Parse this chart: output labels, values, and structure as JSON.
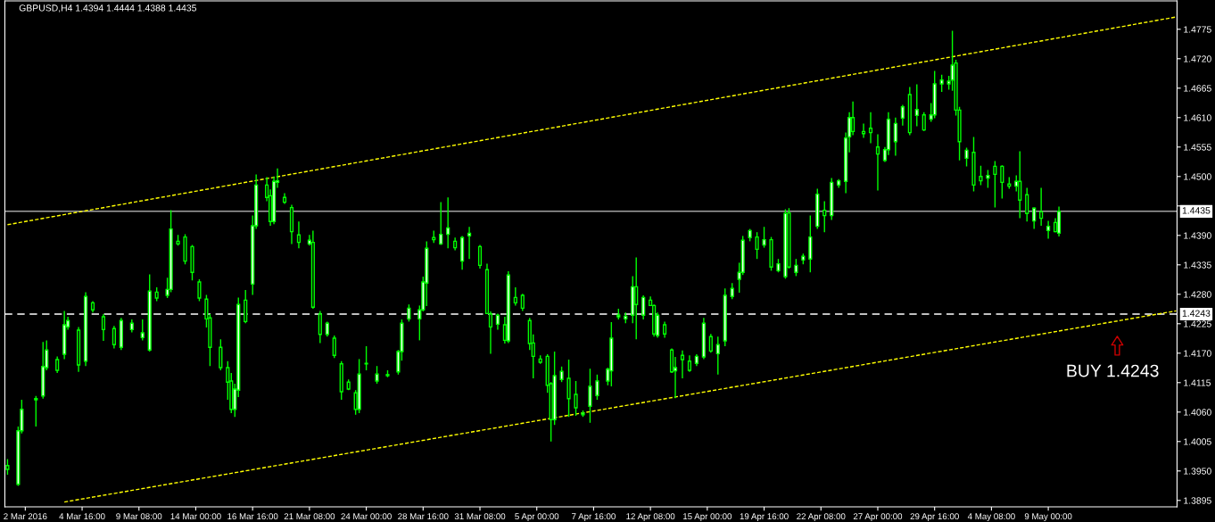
{
  "chart_data": {
    "type": "candlestick",
    "title": "GBPUSD,H4 1.4394 1.4444 1.4388 1.4435",
    "color": "#00ff00",
    "categories": [
      null,
      null,
      null,
      null,
      null,
      "2 Mar 2016",
      null,
      null,
      null,
      null,
      null,
      null,
      null,
      null,
      null,
      null,
      null,
      null,
      null,
      null,
      null,
      "4 Mar 16:00",
      null,
      null,
      null,
      null,
      null,
      null,
      null,
      null,
      null,
      null,
      null,
      null,
      null,
      null,
      null,
      "9 Mar 08:00",
      null,
      null,
      null,
      null,
      null,
      null,
      null,
      null,
      null,
      null,
      null,
      null,
      null,
      null,
      null,
      "14 Mar 00:00",
      null,
      null,
      null,
      null,
      null,
      null,
      null,
      null,
      null,
      null,
      null,
      null,
      null,
      null,
      null,
      "16 Mar 16:00",
      null,
      null,
      null,
      null,
      null,
      null,
      null,
      null,
      null,
      null,
      null,
      null,
      null,
      null,
      null,
      "21 Mar 08:00",
      null,
      null,
      null,
      null,
      null,
      null,
      null,
      null,
      null,
      null,
      null,
      null,
      null,
      null,
      null,
      "24 Mar 00:00",
      null,
      null,
      null,
      null,
      null,
      null,
      null,
      null,
      null,
      null,
      null,
      null,
      null,
      null,
      null,
      "28 Mar 16:00",
      null,
      null,
      null,
      null,
      null,
      null,
      null,
      null,
      null,
      null,
      null,
      null,
      null,
      null,
      null,
      "31 Mar 08:00",
      null,
      null,
      null,
      null,
      null,
      null,
      null,
      null,
      null,
      null,
      null,
      null,
      null,
      null,
      null,
      "5 Apr 00:00",
      null,
      null,
      null,
      null,
      null,
      null,
      null,
      null,
      null,
      null,
      null,
      null,
      null,
      null,
      null,
      "7 Apr 16:00",
      null,
      null,
      null,
      null,
      null,
      null,
      null,
      null,
      null,
      null,
      null,
      null,
      null,
      null,
      null,
      "12 Apr 08:00",
      null,
      null,
      null,
      null,
      null,
      null,
      null,
      null,
      null,
      null,
      null,
      null,
      null,
      null,
      null,
      "15 Apr 00:00",
      null,
      null,
      null,
      null,
      null,
      null,
      null,
      null,
      null,
      null,
      null,
      null,
      null,
      null,
      null,
      "19 Apr 16:00",
      null,
      null,
      null,
      null,
      null,
      null,
      null,
      null,
      null,
      null,
      null,
      null,
      null,
      null,
      null,
      "22 Apr 08:00",
      null,
      null,
      null,
      null,
      null,
      null,
      null,
      null,
      null,
      null,
      null,
      null,
      null,
      null,
      null,
      "27 Apr 00:00",
      null,
      null,
      null,
      null,
      null,
      null,
      null,
      null,
      null,
      null,
      null,
      null,
      null,
      null,
      null,
      "29 Apr 16:00",
      null,
      null,
      null,
      null,
      null,
      null,
      null,
      null,
      null,
      null,
      null,
      null,
      null,
      null,
      null,
      "4 May 08:00",
      null,
      null,
      null,
      null,
      null,
      null,
      null,
      null,
      null,
      null,
      null,
      null,
      null,
      null,
      null,
      "9 May 00:00",
      null,
      null,
      null,
      null,
      null,
      null,
      null,
      null,
      null,
      null,
      null,
      null,
      null,
      null,
      null,
      null,
      null,
      null,
      null,
      null,
      null,
      null,
      null,
      null,
      null,
      null,
      null,
      null,
      null,
      null,
      null,
      null,
      null,
      null,
      null,
      null
    ],
    "ohlc": [
      [
        1.396,
        1.3972,
        1.3943,
        1.3953
      ],
      null,
      null,
      [
        1.3925,
        1.4033,
        1.3922,
        1.4025
      ],
      [
        1.4025,
        1.4083,
        1.402,
        1.4065
      ],
      null,
      null,
      null,
      [
        1.4083,
        1.409,
        1.4033,
        1.4085
      ],
      null,
      [
        1.409,
        1.4191,
        1.4085,
        1.4145
      ],
      [
        1.4143,
        1.4194,
        1.4138,
        1.4176
      ],
      null,
      null,
      [
        1.4158,
        1.4164,
        1.4133,
        1.4138
      ],
      null,
      [
        1.4168,
        1.4249,
        1.4159,
        1.4223
      ],
      [
        1.4219,
        1.4238,
        1.4214,
        1.4231
      ],
      null,
      null,
      [
        1.4213,
        1.4219,
        1.4135,
        1.4148
      ],
      null,
      [
        1.4155,
        1.4284,
        1.4146,
        1.4276
      ],
      null,
      [
        1.4264,
        1.4267,
        1.4246,
        1.4251
      ],
      null,
      null,
      [
        1.4238,
        1.4243,
        1.4193,
        1.4214
      ],
      null,
      null,
      [
        1.4216,
        1.4221,
        1.4179,
        1.4186
      ],
      null,
      [
        1.4181,
        1.4236,
        1.4176,
        1.4231
      ],
      null,
      null,
      [
        1.4214,
        1.4233,
        1.4209,
        1.4226
      ],
      null,
      null,
      [
        1.4199,
        1.4233,
        1.4194,
        1.4208
      ],
      null,
      [
        1.4176,
        1.4317,
        1.4173,
        1.4286
      ],
      null,
      [
        1.4284,
        1.4293,
        1.4267,
        1.4273
      ],
      null,
      null,
      [
        1.4278,
        1.4311,
        1.4273,
        1.4289
      ],
      [
        1.4289,
        1.4437,
        1.4284,
        1.4402
      ],
      null,
      [
        1.4379,
        1.4391,
        1.4371,
        1.4374
      ],
      null,
      [
        1.4387,
        1.4392,
        1.4336,
        1.4342
      ],
      null,
      [
        1.4369,
        1.4372,
        1.4306,
        1.4321
      ],
      null,
      [
        1.4303,
        1.4308,
        1.4267,
        1.4273
      ],
      null,
      [
        1.4271,
        1.4279,
        1.4218,
        1.4234
      ],
      [
        1.4236,
        1.4243,
        1.4146,
        1.4181
      ],
      null,
      null,
      [
        1.4181,
        1.4196,
        1.4138,
        1.4143
      ],
      null,
      [
        1.4143,
        1.4155,
        1.4083,
        1.4116
      ],
      [
        1.4118,
        1.4133,
        1.4058,
        1.4065
      ],
      [
        1.4065,
        1.4113,
        1.4051,
        1.4103
      ],
      [
        1.4101,
        1.4274,
        1.4088,
        1.4261
      ],
      null,
      [
        1.4269,
        1.4288,
        1.4226,
        1.4229
      ],
      null,
      [
        1.4299,
        1.4427,
        1.4279,
        1.4408
      ],
      [
        1.4408,
        1.4504,
        1.4402,
        1.4484
      ],
      null,
      null,
      [
        1.4484,
        1.4499,
        1.4454,
        1.4461
      ],
      [
        1.4464,
        1.4476,
        1.4408,
        1.4416
      ],
      [
        1.4416,
        1.45,
        1.4411,
        1.4491
      ],
      [
        1.4489,
        1.4515,
        1.4479,
        1.4492
      ],
      null,
      [
        1.4461,
        1.4469,
        1.4449,
        1.4452
      ],
      null,
      [
        1.4442,
        1.4447,
        1.4374,
        1.4397
      ],
      null,
      [
        1.4391,
        1.4416,
        1.4366,
        1.4377
      ],
      null,
      null,
      [
        1.4374,
        1.4391,
        1.4371,
        1.4381
      ],
      [
        1.4377,
        1.4399,
        1.4253,
        1.4256
      ],
      null,
      [
        1.4243,
        1.4249,
        1.4189,
        1.4205
      ],
      null,
      [
        1.4205,
        1.4229,
        1.4201,
        1.4226
      ],
      null,
      [
        1.4198,
        1.4203,
        1.4161,
        1.4166
      ],
      null,
      [
        1.415,
        1.4155,
        1.4083,
        1.4098
      ],
      null,
      [
        1.4116,
        1.4121,
        1.4101,
        1.4103
      ],
      null,
      [
        1.4096,
        1.4101,
        1.4055,
        1.4065
      ],
      [
        1.4065,
        1.4159,
        1.4058,
        1.4131
      ],
      null,
      [
        1.4151,
        1.4183,
        1.4138,
        1.415
      ],
      null,
      null,
      [
        1.4118,
        1.4146,
        1.4113,
        1.4131
      ],
      null,
      null,
      [
        1.413,
        1.4138,
        1.4125,
        1.4128
      ],
      null,
      null,
      [
        1.4135,
        1.4176,
        1.413,
        1.4173
      ],
      [
        1.4173,
        1.4233,
        1.4156,
        1.4226
      ],
      null,
      [
        1.4234,
        1.4261,
        1.4229,
        1.4254
      ],
      null,
      null,
      [
        1.4234,
        1.4259,
        1.4194,
        1.4251
      ],
      [
        1.4251,
        1.4313,
        1.4248,
        1.4303
      ],
      [
        1.4301,
        1.4379,
        1.4258,
        1.4366
      ],
      null,
      [
        1.4386,
        1.4399,
        1.4376,
        1.4382
      ],
      null,
      [
        1.4374,
        1.4452,
        1.4372,
        1.4392
      ],
      null,
      [
        1.4392,
        1.4461,
        1.4366,
        1.4404
      ],
      null,
      [
        1.4379,
        1.4386,
        1.4362,
        1.4367
      ],
      null,
      [
        1.4342,
        1.4389,
        1.4326,
        1.4386
      ],
      null,
      [
        1.4389,
        1.4406,
        1.4346,
        1.4394
      ],
      null,
      null,
      [
        1.4369,
        1.4372,
        1.4328,
        1.4334
      ],
      null,
      [
        1.4326,
        1.4337,
        1.4243,
        1.4244
      ],
      [
        1.4243,
        1.4248,
        1.4169,
        1.4219
      ],
      null,
      [
        1.4224,
        1.4244,
        1.4214,
        1.4241
      ],
      null,
      [
        1.4223,
        1.4238,
        1.4188,
        1.4194
      ],
      [
        1.4193,
        1.4323,
        1.4189,
        1.4316
      ],
      null,
      [
        1.4274,
        1.4293,
        1.4259,
        1.4264
      ],
      null,
      [
        1.4278,
        1.4281,
        1.4249,
        1.4254
      ],
      null,
      [
        1.4231,
        1.4236,
        1.4176,
        1.4188
      ],
      [
        1.4189,
        1.4205,
        1.4123,
        1.4164
      ],
      null,
      [
        1.4159,
        1.4166,
        1.415,
        1.4153
      ],
      null,
      [
        1.4164,
        1.4168,
        1.4096,
        1.411
      ],
      [
        1.4113,
        1.4116,
        1.4005,
        1.4046
      ],
      [
        1.4046,
        1.4173,
        1.4036,
        1.4128
      ],
      null,
      [
        1.4121,
        1.4145,
        1.4116,
        1.4136
      ],
      null,
      [
        1.4123,
        1.4158,
        1.4051,
        1.4085
      ],
      null,
      [
        1.4093,
        1.4118,
        1.4053,
        1.4068
      ],
      null,
      [
        1.4055,
        1.4063,
        1.4051,
        1.4058
      ],
      null,
      [
        1.4071,
        1.4141,
        1.404,
        1.4108
      ],
      null,
      [
        1.4091,
        1.413,
        1.4083,
        1.4118
      ],
      null,
      null,
      [
        1.4118,
        1.4143,
        1.411,
        1.414
      ],
      [
        1.4137,
        1.4228,
        1.4108,
        1.4198
      ],
      null,
      [
        1.4238,
        1.4253,
        1.4233,
        1.4241
      ],
      null,
      [
        1.4234,
        1.4246,
        1.4226,
        1.4239
      ],
      null,
      [
        1.4241,
        1.4314,
        1.4226,
        1.4294
      ],
      [
        1.4294,
        1.4349,
        1.4196,
        1.4261
      ],
      null,
      [
        1.4241,
        1.4278,
        1.4233,
        1.4274
      ],
      null,
      [
        1.4269,
        1.4276,
        1.4258,
        1.4259
      ],
      [
        1.4259,
        1.4261,
        1.4201,
        1.4206
      ],
      [
        1.4203,
        1.4246,
        1.4199,
        1.4241
      ],
      null,
      [
        1.4223,
        1.4229,
        1.4199,
        1.4206
      ],
      null,
      [
        1.4176,
        1.4179,
        1.4133,
        1.4135
      ],
      [
        1.4137,
        1.4163,
        1.4086,
        1.4143
      ],
      null,
      [
        1.4166,
        1.4175,
        1.4123,
        1.4158
      ],
      null,
      [
        1.4155,
        1.4166,
        1.4135,
        1.4138
      ],
      null,
      [
        1.4151,
        1.4168,
        1.4146,
        1.4164
      ],
      null,
      [
        1.4163,
        1.4236,
        1.4159,
        1.4226
      ],
      null,
      [
        1.4201,
        1.4206,
        1.4171,
        1.4174
      ],
      null,
      [
        1.4169,
        1.4201,
        1.413,
        1.4186
      ],
      null,
      [
        1.4193,
        1.4291,
        1.4183,
        1.4278
      ],
      null,
      [
        1.4276,
        1.4301,
        1.4271,
        1.4291
      ],
      null,
      [
        1.4308,
        1.4339,
        1.4283,
        1.4321
      ],
      [
        1.4321,
        1.4389,
        1.4316,
        1.4381
      ],
      null,
      [
        1.4386,
        1.4402,
        1.4379,
        1.4399
      ],
      null,
      [
        1.4387,
        1.4396,
        1.4346,
        1.4364
      ],
      null,
      [
        1.4372,
        1.4406,
        1.4367,
        1.4382
      ],
      null,
      [
        1.4382,
        1.4387,
        1.4324,
        1.4331
      ],
      null,
      [
        1.4324,
        1.4346,
        1.4321,
        1.4337
      ],
      null,
      [
        1.4313,
        1.4439,
        1.4309,
        1.4431
      ],
      [
        1.4432,
        1.4441,
        1.4328,
        1.4331
      ],
      null,
      [
        1.4321,
        1.4346,
        1.4314,
        1.4334
      ],
      null,
      [
        1.4344,
        1.4356,
        1.4336,
        1.4351
      ],
      null,
      [
        1.4346,
        1.4427,
        1.4321,
        1.4387
      ],
      null,
      [
        1.4407,
        1.4477,
        1.4402,
        1.4467
      ],
      null,
      [
        1.4437,
        1.4454,
        1.4396,
        1.4427
      ],
      null,
      [
        1.4427,
        1.4497,
        1.4419,
        1.4489
      ],
      null,
      [
        1.4484,
        1.4495,
        1.4479,
        1.4492
      ],
      null,
      [
        1.4491,
        1.4582,
        1.4469,
        1.4572
      ],
      [
        1.4574,
        1.462,
        1.4545,
        1.461
      ],
      [
        1.461,
        1.464,
        1.4577,
        1.4584
      ],
      null,
      null,
      [
        1.4584,
        1.4599,
        1.4572,
        1.458
      ],
      null,
      [
        1.459,
        1.462,
        1.4562,
        1.4582
      ],
      null,
      [
        1.4555,
        1.4579,
        1.4474,
        1.4542
      ],
      null,
      [
        1.453,
        1.4555,
        1.4527,
        1.455
      ],
      [
        1.455,
        1.462,
        1.454,
        1.4607
      ],
      null,
      [
        1.4565,
        1.461,
        1.4539,
        1.4599
      ],
      null,
      [
        1.4609,
        1.4634,
        1.4595,
        1.463
      ],
      null,
      [
        1.4653,
        1.4667,
        1.4577,
        1.4582
      ],
      null,
      [
        1.4614,
        1.4672,
        1.4594,
        1.4625
      ],
      null,
      [
        1.4615,
        1.462,
        1.4585,
        1.4587
      ],
      null,
      [
        1.4607,
        1.4637,
        1.4602,
        1.4615
      ],
      [
        1.4615,
        1.4697,
        1.4609,
        1.4673
      ],
      null,
      [
        1.4673,
        1.469,
        1.4658,
        1.468
      ],
      null,
      [
        1.4673,
        1.4688,
        1.4662,
        1.4678
      ],
      [
        1.468,
        1.4772,
        1.466,
        1.4708
      ],
      [
        1.4712,
        1.4718,
        1.4614,
        1.4624
      ],
      [
        1.4624,
        1.463,
        1.453,
        1.4565
      ],
      null,
      [
        1.4534,
        1.4554,
        1.4519,
        1.4549
      ],
      null,
      [
        1.4545,
        1.4574,
        1.4472,
        1.4484
      ],
      null,
      [
        1.45,
        1.452,
        1.4484,
        1.4492
      ],
      null,
      [
        1.4497,
        1.4512,
        1.4479,
        1.4502
      ],
      null,
      [
        1.4519,
        1.4529,
        1.4442,
        1.4504
      ],
      null,
      [
        1.4519,
        1.4521,
        1.4459,
        1.4489
      ],
      null,
      [
        1.4486,
        1.4499,
        1.4477,
        1.4482
      ],
      null,
      [
        1.4482,
        1.4502,
        1.4472,
        1.4491
      ],
      [
        1.4491,
        1.4547,
        1.4422,
        1.4456
      ],
      null,
      [
        1.4466,
        1.4479,
        1.4416,
        1.4431
      ],
      null,
      [
        1.4417,
        1.4442,
        1.4402,
        1.4441
      ],
      null,
      [
        1.4434,
        1.4479,
        1.4408,
        1.4422
      ],
      null,
      [
        1.4399,
        1.4417,
        1.4384,
        1.4407
      ],
      null,
      [
        1.4414,
        1.4422,
        1.4396,
        1.4397
      ],
      [
        1.4394,
        1.4444,
        1.4388,
        1.4435
      ],
      null,
      null,
      null,
      null,
      null,
      null,
      null,
      null,
      null,
      null,
      null,
      null,
      null,
      null,
      null,
      null,
      null,
      null,
      null,
      null,
      null,
      null,
      null,
      null,
      null,
      null,
      null,
      null,
      null,
      null,
      null,
      null,
      null
    ],
    "series": [
      {
        "type": "line",
        "color": "#ffff00",
        "line_style": "dashed",
        "values": [
          1.441,
          null,
          null,
          null,
          null,
          null,
          null,
          null,
          null,
          null,
          null,
          null,
          null,
          null,
          null,
          null,
          null,
          null,
          null,
          null,
          null,
          null,
          null,
          null,
          null,
          null,
          null,
          null,
          null,
          null,
          null,
          null,
          null,
          null,
          null,
          null,
          null,
          null,
          null,
          null,
          null,
          null,
          null,
          null,
          null,
          null,
          null,
          null,
          null,
          null,
          null,
          null,
          null,
          null,
          null,
          null,
          null,
          null,
          null,
          null,
          null,
          null,
          null,
          null,
          null,
          null,
          null,
          null,
          null,
          null,
          null,
          null,
          null,
          null,
          null,
          null,
          null,
          null,
          null,
          null,
          null,
          null,
          null,
          null,
          null,
          null,
          null,
          null,
          null,
          null,
          null,
          null,
          null,
          null,
          null,
          null,
          null,
          null,
          null,
          null,
          null,
          null,
          null,
          null,
          null,
          null,
          null,
          null,
          null,
          null,
          null,
          null,
          null,
          null,
          null,
          null,
          null,
          null,
          null,
          null,
          null,
          null,
          null,
          null,
          null,
          null,
          null,
          null,
          null,
          null,
          null,
          null,
          null,
          null,
          null,
          null,
          null,
          null,
          null,
          null,
          null,
          null,
          null,
          null,
          null,
          null,
          null,
          null,
          null,
          null,
          null,
          null,
          null,
          null,
          null,
          null,
          null,
          null,
          null,
          null,
          null,
          null,
          null,
          null,
          null,
          null,
          null,
          null,
          null,
          null,
          null,
          null,
          null,
          null,
          null,
          null,
          null,
          null,
          null,
          null,
          null,
          null,
          null,
          null,
          null,
          null,
          null,
          null,
          null,
          null,
          null,
          null,
          null,
          null,
          null,
          null,
          null,
          null,
          null,
          null,
          null,
          null,
          null,
          null,
          null,
          null,
          null,
          null,
          null,
          null,
          null,
          null,
          null,
          null,
          null,
          null,
          null,
          null,
          null,
          null,
          null,
          null,
          null,
          null,
          null,
          null,
          null,
          null,
          null,
          null,
          null,
          null,
          null,
          null,
          null,
          null,
          null,
          null,
          null,
          null,
          null,
          null,
          null,
          null,
          null,
          null,
          null,
          null,
          null,
          null,
          null,
          null,
          null,
          null,
          null,
          null,
          null,
          null,
          null,
          null,
          null,
          null,
          null,
          null,
          null,
          null,
          null,
          null,
          null,
          null,
          null,
          null,
          null,
          null,
          null,
          null,
          null,
          null,
          null,
          null,
          null,
          null,
          null,
          null,
          null,
          null,
          null,
          null,
          null,
          null,
          null,
          null,
          null,
          null,
          null,
          null,
          null,
          null,
          null,
          null,
          null,
          null,
          null,
          null,
          null,
          null,
          null,
          null,
          null,
          null,
          null,
          null,
          null,
          null,
          null,
          null,
          null,
          null,
          null,
          null,
          null,
          null,
          null,
          null,
          null,
          null,
          null,
          null,
          null,
          1.4798
        ]
      },
      {
        "type": "line",
        "color": "#ffff00",
        "line_style": "dashed",
        "values": [
          null,
          null,
          null,
          null,
          null,
          null,
          null,
          null,
          null,
          null,
          null,
          null,
          null,
          null,
          null,
          null,
          1.3892,
          null,
          null,
          null,
          null,
          null,
          null,
          null,
          null,
          null,
          null,
          null,
          null,
          null,
          null,
          null,
          null,
          null,
          null,
          null,
          null,
          null,
          null,
          null,
          null,
          null,
          null,
          null,
          null,
          null,
          null,
          null,
          null,
          null,
          null,
          null,
          null,
          null,
          null,
          null,
          null,
          null,
          null,
          null,
          null,
          null,
          null,
          null,
          null,
          null,
          null,
          null,
          null,
          null,
          null,
          null,
          null,
          null,
          null,
          null,
          null,
          null,
          null,
          null,
          null,
          null,
          null,
          null,
          null,
          null,
          null,
          null,
          null,
          null,
          null,
          null,
          null,
          null,
          null,
          null,
          null,
          null,
          null,
          null,
          null,
          null,
          null,
          null,
          null,
          null,
          null,
          null,
          null,
          null,
          null,
          null,
          null,
          null,
          null,
          null,
          null,
          null,
          null,
          null,
          null,
          null,
          null,
          null,
          null,
          null,
          null,
          null,
          null,
          null,
          null,
          null,
          null,
          null,
          null,
          null,
          null,
          null,
          null,
          null,
          null,
          null,
          null,
          null,
          null,
          null,
          null,
          null,
          null,
          null,
          null,
          null,
          null,
          null,
          null,
          null,
          null,
          null,
          null,
          null,
          null,
          null,
          null,
          null,
          null,
          null,
          null,
          null,
          null,
          null,
          null,
          null,
          null,
          null,
          null,
          null,
          null,
          null,
          null,
          null,
          null,
          null,
          null,
          null,
          null,
          null,
          null,
          null,
          null,
          null,
          null,
          null,
          null,
          null,
          null,
          null,
          null,
          null,
          null,
          null,
          null,
          null,
          null,
          null,
          null,
          null,
          null,
          null,
          null,
          null,
          null,
          null,
          null,
          null,
          null,
          null,
          null,
          null,
          null,
          null,
          null,
          null,
          null,
          null,
          null,
          null,
          null,
          null,
          null,
          null,
          null,
          null,
          null,
          null,
          null,
          null,
          null,
          null,
          null,
          null,
          null,
          null,
          null,
          null,
          null,
          null,
          null,
          null,
          null,
          null,
          null,
          null,
          null,
          null,
          null,
          null,
          null,
          null,
          null,
          null,
          null,
          null,
          null,
          null,
          null,
          null,
          null,
          null,
          null,
          null,
          null,
          null,
          null,
          null,
          null,
          null,
          null,
          null,
          null,
          null,
          null,
          null,
          null,
          null,
          null,
          null,
          null,
          null,
          null,
          null,
          null,
          null,
          null,
          null,
          null,
          null,
          null,
          null,
          null,
          null,
          null,
          null,
          null,
          null,
          null,
          null,
          null,
          null,
          null,
          null,
          null,
          null,
          null,
          null,
          null,
          null,
          null,
          null,
          null,
          null,
          null,
          null,
          null,
          null,
          null,
          null,
          null,
          null,
          null,
          1.4249
        ]
      }
    ],
    "ref_lines": [
      {
        "axis": "y",
        "value": 1.4435,
        "label": "1.4435",
        "color": "#a0a0a0",
        "line_style": "solid"
      },
      {
        "axis": "y",
        "value": 1.4243,
        "label": "1.4243",
        "color": "#ffffff",
        "line_style": "dashed"
      }
    ],
    "annotations": [
      "BUY 1.4243"
    ],
    "ylim": [
      1.3883,
      1.4828
    ],
    "yticks": [
      {
        "value": 1.3895,
        "label": "1.3895"
      },
      {
        "value": 1.395,
        "label": "1.3950"
      },
      {
        "value": 1.4005,
        "label": "1.4005"
      },
      {
        "value": 1.406,
        "label": "1.4060"
      },
      {
        "value": 1.4115,
        "label": "1.4115"
      },
      {
        "value": 1.417,
        "label": "1.4170"
      },
      {
        "value": 1.4225,
        "label": "1.4225"
      },
      {
        "value": 1.428,
        "label": "1.4280"
      },
      {
        "value": 1.4335,
        "label": "1.4335"
      },
      {
        "value": 1.439,
        "label": "1.4390"
      },
      {
        "value": 1.4445,
        "label": null
      },
      {
        "value": 1.45,
        "label": "1.4500"
      },
      {
        "value": 1.4555,
        "label": "1.4555"
      },
      {
        "value": 1.461,
        "label": "1.4610"
      },
      {
        "value": 1.4665,
        "label": "1.4665"
      },
      {
        "value": 1.472,
        "label": "1.4720"
      },
      {
        "value": 1.4775,
        "label": "1.4775"
      }
    ],
    "grid": false,
    "legend": false
  }
}
